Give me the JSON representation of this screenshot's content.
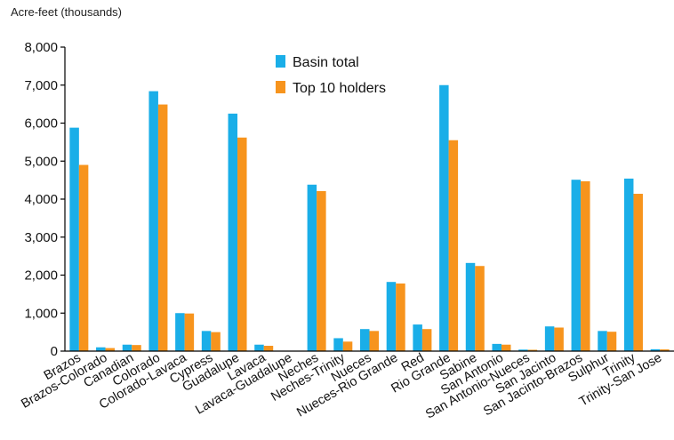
{
  "chart_data": {
    "type": "bar",
    "ylabel": "Acre-feet (thousands)",
    "ylim": [
      0,
      8000
    ],
    "yticks": [
      0,
      1000,
      2000,
      3000,
      4000,
      5000,
      6000,
      7000,
      8000
    ],
    "ytick_labels": [
      "0",
      "1,000",
      "2,000",
      "3,000",
      "4,000",
      "5,000",
      "6,000",
      "7,000",
      "8,000"
    ],
    "grid": false,
    "legend_position": "top-center",
    "categories": [
      "Brazos",
      "Brazos-Colorado",
      "Canadian",
      "Colorado",
      "Colorado-Lavaca",
      "Cypress",
      "Guadalupe",
      "Lavaca",
      "Lavaca-Guadalupe",
      "Neches",
      "Neches-Trinity",
      "Nueces",
      "Nueces-Rio Grande",
      "Red",
      "Rio Grande",
      "Sabine",
      "San Antonio",
      "San Antonio-Nueces",
      "San Jacinto",
      "San Jacinto-Brazos",
      "Sulphur",
      "Trinity",
      "Trinity-San Jose"
    ],
    "series": [
      {
        "name": "Basin total",
        "color": "#1aaee8",
        "values": [
          5880,
          100,
          170,
          6840,
          1000,
          530,
          6250,
          170,
          10,
          4380,
          340,
          580,
          1820,
          700,
          7000,
          2320,
          190,
          40,
          650,
          4510,
          530,
          4540,
          50
        ]
      },
      {
        "name": "Top 10 holders",
        "color": "#f7941d",
        "values": [
          4900,
          80,
          160,
          6490,
          990,
          500,
          5620,
          140,
          5,
          4210,
          250,
          530,
          1780,
          580,
          5550,
          2240,
          170,
          35,
          620,
          4470,
          510,
          4140,
          45
        ]
      }
    ]
  }
}
